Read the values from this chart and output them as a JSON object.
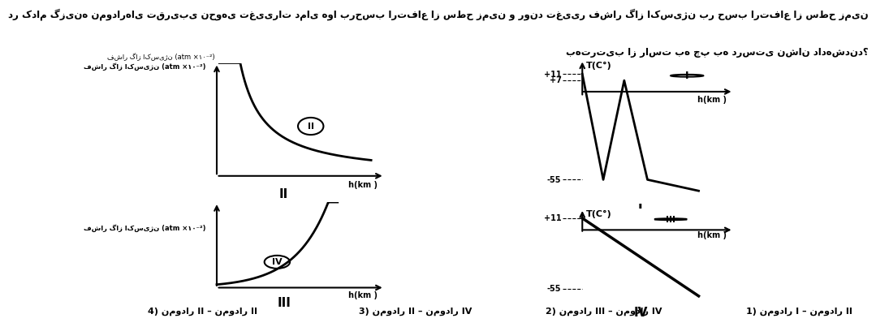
{
  "bg_color": "#ffffff",
  "title_line1": "در کدام گزینه نمودارهای تقریبی نحوهی تغییرات دمای هوا برحسب ارتفاع از سطح زمین و روند تغییر فشار گاز اکسیژن بر حسب ارتفاع از سطح زمین",
  "title_line2": "بهترتیب از راست به چپ به درستی نشان دادهشدند؟",
  "ans1": "1) نمودار I – نمودار II",
  "ans2": "2) نمودار III – نمودار IV",
  "ans3": "3) نمودار II – نمودار IV",
  "ans4": "4) نمودار II – نمودار II",
  "pressure_ylabel_fa": "فشار گاز اکسیژن (atm ×10⁻²)",
  "pressure_ylabel_fa2": "(·1۰⁻² atm) فشار گاز اکسیژن",
  "h_label": "h(km )",
  "T_label_1": "T(C°)",
  "T_label_2": "T(C°)"
}
